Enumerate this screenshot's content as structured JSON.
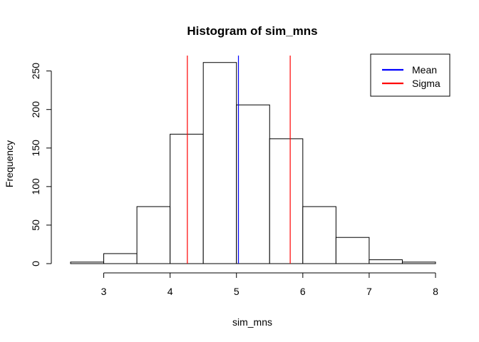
{
  "chart_data": {
    "type": "bar",
    "title": "Histogram of sim_mns",
    "xlabel": "sim_mns",
    "ylabel": "Frequency",
    "bins": [
      {
        "x0": 2.5,
        "x1": 3.0,
        "count": 2
      },
      {
        "x0": 3.0,
        "x1": 3.5,
        "count": 13
      },
      {
        "x0": 3.5,
        "x1": 4.0,
        "count": 74
      },
      {
        "x0": 4.0,
        "x1": 4.5,
        "count": 168
      },
      {
        "x0": 4.5,
        "x1": 5.0,
        "count": 261
      },
      {
        "x0": 5.0,
        "x1": 5.5,
        "count": 206
      },
      {
        "x0": 5.5,
        "x1": 6.0,
        "count": 162
      },
      {
        "x0": 6.0,
        "x1": 6.5,
        "count": 74
      },
      {
        "x0": 6.5,
        "x1": 7.0,
        "count": 34
      },
      {
        "x0": 7.0,
        "x1": 7.5,
        "count": 5
      },
      {
        "x0": 7.5,
        "x1": 8.0,
        "count": 2
      }
    ],
    "xlim": [
      2.5,
      8
    ],
    "ylim": [
      0,
      270
    ],
    "x_ticks": [
      3,
      4,
      5,
      6,
      7,
      8
    ],
    "y_ticks": [
      0,
      50,
      100,
      150,
      200,
      250
    ],
    "vlines": [
      {
        "name": "Mean",
        "x": 5.03,
        "color": "#0000ff"
      },
      {
        "name": "Sigma",
        "x": 4.26,
        "color": "#ff0000"
      },
      {
        "name": "Sigma",
        "x": 5.81,
        "color": "#ff0000"
      }
    ],
    "legend": {
      "position": "top-right",
      "entries": [
        {
          "label": "Mean",
          "color": "#0000ff"
        },
        {
          "label": "Sigma",
          "color": "#ff0000"
        }
      ]
    },
    "grid": false
  }
}
